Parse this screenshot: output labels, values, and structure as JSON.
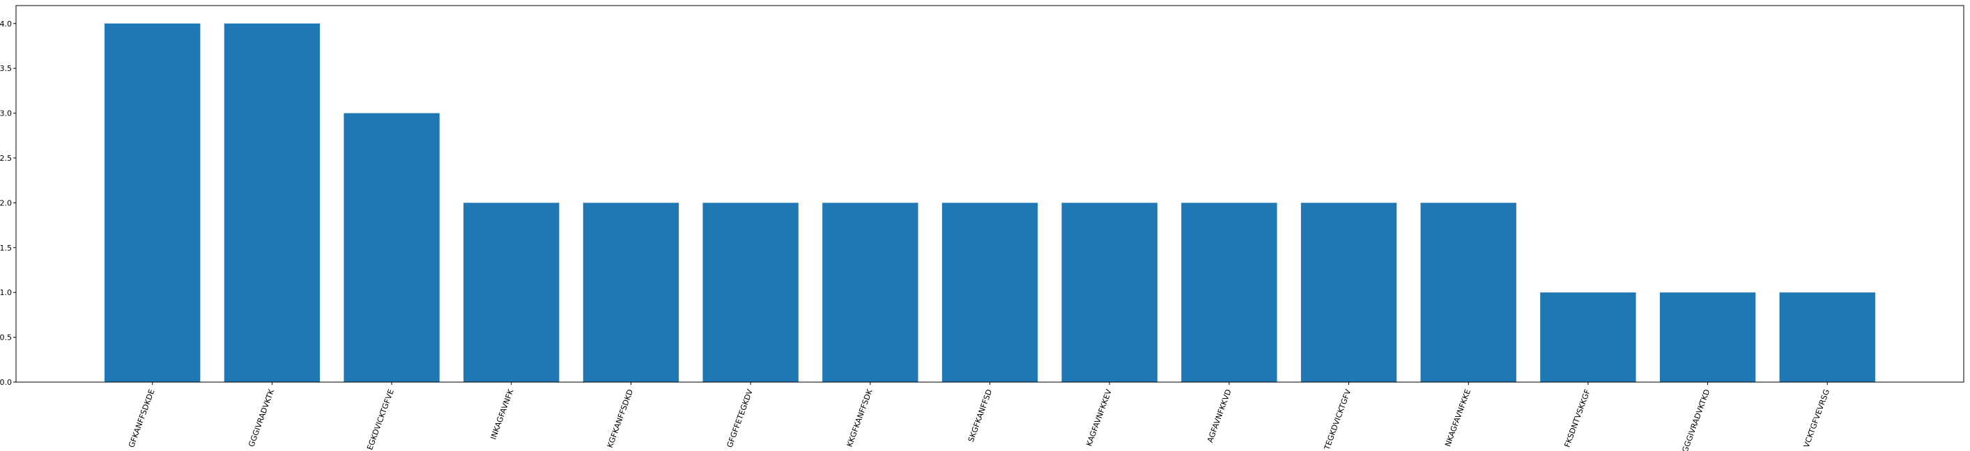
{
  "chart_data": {
    "type": "bar",
    "title": "",
    "xlabel": "",
    "ylabel": "",
    "categories": [
      "GFKANFFSDKDE",
      "GGGIVRADVKTK",
      "EGKDVICKTGFVE",
      "INKAGFAVNFK",
      "KGFKANFFSDKD",
      "GFGFFETEGKDV",
      "KKGFKANFFSDK",
      "SKGFKANFFSD",
      "KAGFAVNFKKEV",
      "AGFAVNFKKVD",
      "TEGKDVICKTGFV",
      "NKAGFAVNFKKE",
      "FKSDNTVSKKGF",
      "GGGIVRADVKTKD",
      "VCKTGFVEVRSG"
    ],
    "values": [
      4,
      4,
      3,
      2,
      2,
      2,
      2,
      2,
      2,
      2,
      2,
      2,
      1,
      1,
      1
    ],
    "ylim": [
      0,
      4.2
    ],
    "yticks": [
      "0.0",
      "0.5",
      "1.0",
      "1.5",
      "2.0",
      "2.5",
      "3.0",
      "3.5",
      "4.0"
    ],
    "grid": false,
    "legend": "none",
    "bar_color": "#1f77b4",
    "axis_color": "#000000"
  }
}
